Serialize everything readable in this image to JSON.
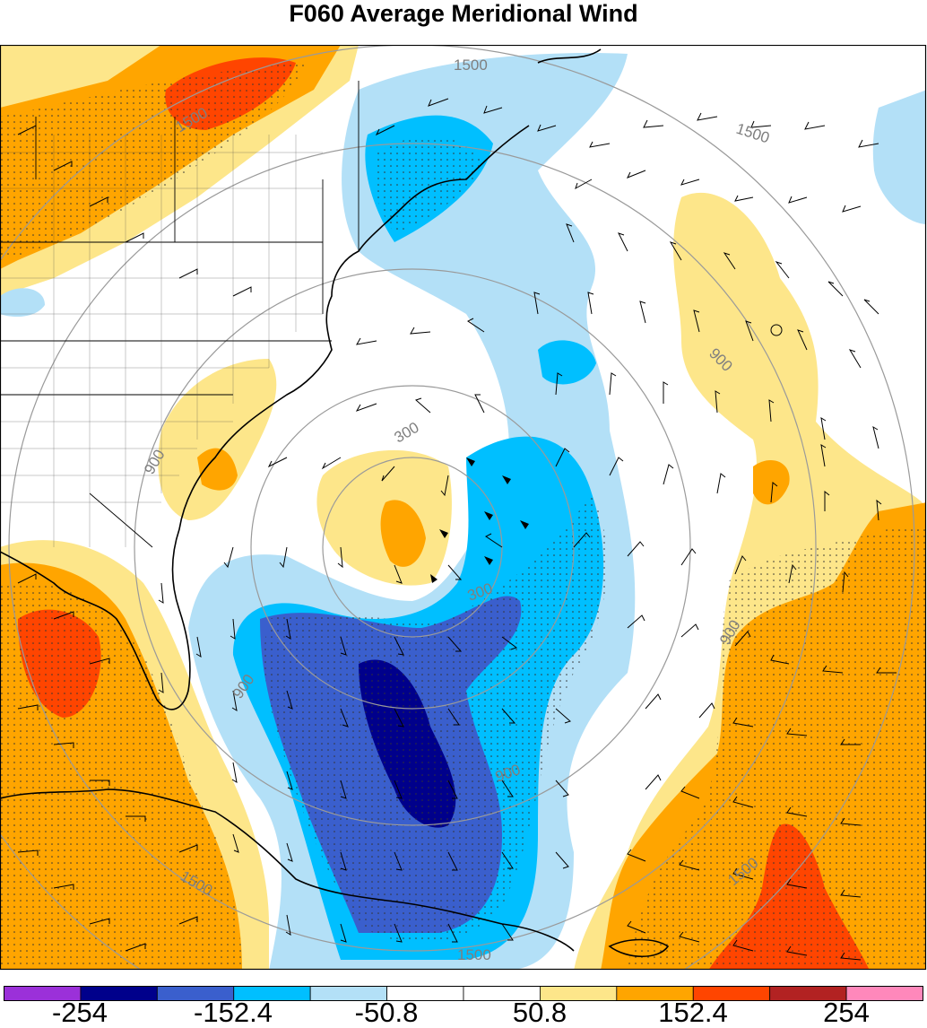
{
  "title": "F060 Average Meridional Wind",
  "colors": {
    "c0": "#9b30d9",
    "c1": "#00008b",
    "c2": "#3a5fcd",
    "c3": "#00bfff",
    "c4": "#b3e0f7",
    "c5": "#ffffff",
    "c6": "#ffffff",
    "c7": "#fde68a",
    "c8": "#ffa500",
    "c9": "#ff4500",
    "c10": "#b22222",
    "c11": "#ff88bb"
  },
  "colorbar": {
    "colors": [
      "#9b30d9",
      "#00008b",
      "#3a5fcd",
      "#00bfff",
      "#b3e0f7",
      "#ffffff",
      "#ffffff",
      "#fde68a",
      "#ffa500",
      "#ff4500",
      "#b22222",
      "#ff88bb"
    ],
    "labels": [
      "-254",
      "-152.4",
      "-50.8",
      "50.8",
      "152.4",
      "254"
    ]
  },
  "contour_labels": [
    "1500",
    "1500",
    "1500",
    "1500",
    "1500",
    "1500",
    "900",
    "900",
    "900",
    "900",
    "900",
    "300",
    "300"
  ]
}
